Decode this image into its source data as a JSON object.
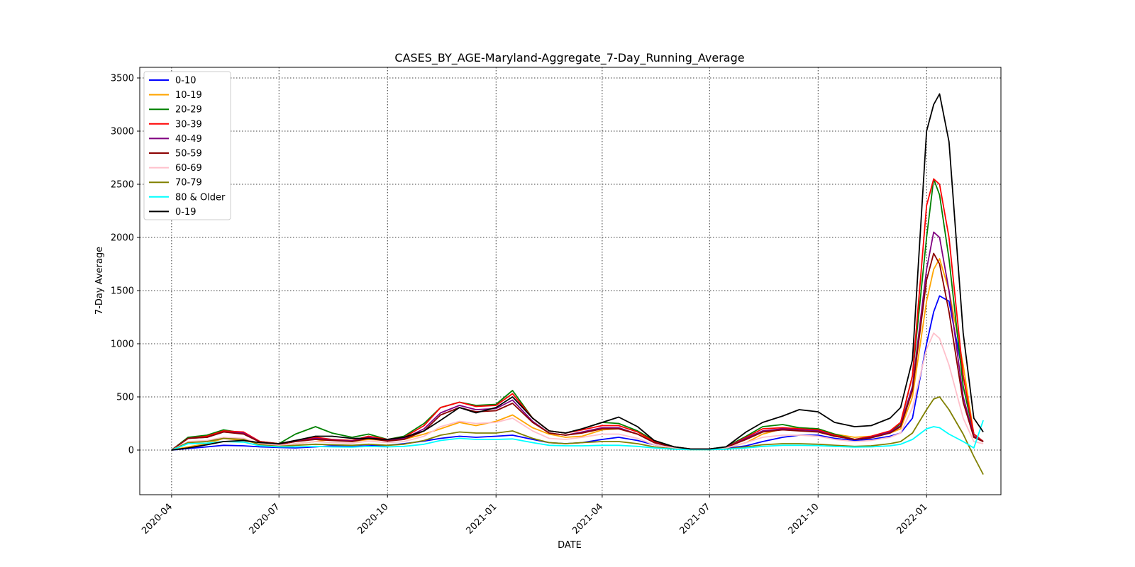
{
  "chart_data": {
    "type": "line",
    "title": "CASES_BY_AGE-Maryland-Aggregate_7-Day_Running_Average",
    "xlabel": "DATE",
    "ylabel": "7-Day Average",
    "xlim": [
      "2020-03-05",
      "2022-03-05"
    ],
    "ylim": [
      -420,
      3600
    ],
    "grid": true,
    "legend_position": "top-left",
    "x_ticks": [
      "2020-04",
      "2020-07",
      "2020-10",
      "2021-01",
      "2021-04",
      "2021-07",
      "2021-10",
      "2022-01"
    ],
    "y_ticks": [
      0,
      500,
      1000,
      1500,
      2000,
      2500,
      3000,
      3500
    ],
    "x": [
      "2020-04-01",
      "2020-04-15",
      "2020-05-01",
      "2020-05-15",
      "2020-06-01",
      "2020-06-15",
      "2020-07-01",
      "2020-07-15",
      "2020-08-01",
      "2020-08-15",
      "2020-09-01",
      "2020-09-15",
      "2020-10-01",
      "2020-10-15",
      "2020-11-01",
      "2020-11-15",
      "2020-12-01",
      "2020-12-15",
      "2021-01-01",
      "2021-01-15",
      "2021-02-01",
      "2021-02-15",
      "2021-03-01",
      "2021-03-15",
      "2021-04-01",
      "2021-04-15",
      "2021-05-01",
      "2021-05-15",
      "2021-06-01",
      "2021-06-15",
      "2021-07-01",
      "2021-07-15",
      "2021-08-01",
      "2021-08-15",
      "2021-09-01",
      "2021-09-15",
      "2021-10-01",
      "2021-10-15",
      "2021-11-01",
      "2021-11-15",
      "2021-12-01",
      "2021-12-10",
      "2021-12-20",
      "2022-01-01",
      "2022-01-07",
      "2022-01-12",
      "2022-01-20",
      "2022-02-01",
      "2022-02-10",
      "2022-02-18"
    ],
    "series": [
      {
        "name": "0-10",
        "color": "#0000ff",
        "values": [
          0,
          15,
          30,
          45,
          40,
          30,
          25,
          20,
          30,
          40,
          35,
          40,
          45,
          60,
          85,
          110,
          130,
          120,
          130,
          140,
          100,
          70,
          60,
          70,
          100,
          120,
          90,
          50,
          20,
          10,
          10,
          15,
          40,
          80,
          120,
          140,
          140,
          110,
          90,
          100,
          130,
          160,
          300,
          1000,
          1300,
          1450,
          1400,
          700,
          150,
          80
        ]
      },
      {
        "name": "10-19",
        "color": "#ffa500",
        "values": [
          0,
          30,
          60,
          110,
          90,
          60,
          45,
          60,
          80,
          100,
          80,
          100,
          90,
          100,
          150,
          200,
          260,
          230,
          270,
          330,
          210,
          150,
          120,
          130,
          190,
          200,
          150,
          80,
          30,
          10,
          10,
          20,
          70,
          150,
          200,
          210,
          200,
          150,
          120,
          130,
          160,
          200,
          500,
          1400,
          1700,
          1800,
          1500,
          800,
          150,
          80
        ]
      },
      {
        "name": "20-29",
        "color": "#008000",
        "values": [
          0,
          120,
          140,
          190,
          160,
          80,
          60,
          150,
          220,
          160,
          120,
          150,
          100,
          130,
          250,
          400,
          450,
          420,
          430,
          560,
          300,
          180,
          160,
          200,
          260,
          250,
          180,
          90,
          30,
          10,
          10,
          30,
          130,
          220,
          240,
          210,
          200,
          150,
          100,
          120,
          170,
          250,
          700,
          2000,
          2550,
          2400,
          1800,
          600,
          150,
          80
        ]
      },
      {
        "name": "30-39",
        "color": "#ff0000",
        "values": [
          0,
          110,
          130,
          180,
          170,
          80,
          60,
          90,
          120,
          100,
          90,
          130,
          100,
          120,
          230,
          400,
          450,
          410,
          420,
          530,
          300,
          180,
          160,
          190,
          230,
          230,
          170,
          80,
          30,
          10,
          10,
          25,
          120,
          200,
          210,
          200,
          190,
          140,
          100,
          130,
          180,
          260,
          700,
          2300,
          2550,
          2500,
          2000,
          700,
          150,
          80
        ]
      },
      {
        "name": "40-49",
        "color": "#800080",
        "values": [
          0,
          110,
          120,
          170,
          160,
          75,
          55,
          80,
          110,
          95,
          85,
          120,
          90,
          110,
          200,
          350,
          420,
          380,
          390,
          470,
          270,
          160,
          140,
          170,
          210,
          210,
          150,
          70,
          25,
          10,
          10,
          25,
          110,
          180,
          200,
          190,
          180,
          130,
          100,
          120,
          170,
          230,
          600,
          1700,
          2050,
          2000,
          1500,
          500,
          130,
          80
        ]
      },
      {
        "name": "50-59",
        "color": "#8b0000",
        "values": [
          0,
          110,
          120,
          170,
          150,
          75,
          55,
          80,
          100,
          90,
          80,
          110,
          85,
          100,
          180,
          330,
          400,
          360,
          370,
          440,
          260,
          160,
          140,
          160,
          200,
          200,
          150,
          70,
          25,
          10,
          10,
          25,
          100,
          170,
          190,
          180,
          170,
          130,
          100,
          115,
          160,
          220,
          560,
          1600,
          1850,
          1750,
          1300,
          450,
          120,
          80
        ]
      },
      {
        "name": "60-69",
        "color": "#ffc0cb",
        "values": [
          0,
          80,
          90,
          120,
          110,
          60,
          45,
          60,
          80,
          70,
          65,
          85,
          70,
          80,
          130,
          220,
          270,
          250,
          260,
          300,
          180,
          110,
          100,
          120,
          150,
          150,
          110,
          50,
          20,
          10,
          10,
          20,
          70,
          120,
          140,
          140,
          130,
          100,
          80,
          90,
          120,
          160,
          400,
          950,
          1100,
          1050,
          800,
          300,
          80,
          60
        ]
      },
      {
        "name": "70-79",
        "color": "#808000",
        "values": [
          0,
          70,
          80,
          110,
          100,
          50,
          35,
          45,
          55,
          50,
          45,
          55,
          45,
          55,
          90,
          140,
          170,
          160,
          160,
          180,
          110,
          70,
          60,
          70,
          80,
          80,
          60,
          30,
          10,
          5,
          5,
          10,
          30,
          50,
          60,
          60,
          55,
          45,
          35,
          40,
          60,
          80,
          160,
          380,
          480,
          500,
          380,
          150,
          -60,
          -230
        ]
      },
      {
        "name": "80 & Older",
        "color": "#00ffff",
        "values": [
          0,
          60,
          65,
          80,
          75,
          40,
          30,
          30,
          35,
          30,
          28,
          35,
          30,
          35,
          55,
          90,
          110,
          100,
          100,
          105,
          70,
          45,
          40,
          40,
          45,
          45,
          35,
          20,
          8,
          5,
          5,
          8,
          20,
          35,
          45,
          45,
          42,
          35,
          28,
          30,
          40,
          55,
          100,
          200,
          220,
          210,
          150,
          80,
          20,
          280
        ]
      },
      {
        "name": "0-19",
        "color": "#000000",
        "values": [
          0,
          20,
          50,
          80,
          90,
          70,
          60,
          90,
          130,
          130,
          110,
          110,
          100,
          120,
          180,
          280,
          400,
          350,
          400,
          500,
          300,
          180,
          160,
          200,
          260,
          310,
          220,
          90,
          30,
          10,
          10,
          30,
          170,
          260,
          320,
          380,
          360,
          260,
          220,
          230,
          300,
          400,
          850,
          3000,
          3250,
          3350,
          2900,
          1100,
          300,
          170
        ]
      }
    ]
  }
}
